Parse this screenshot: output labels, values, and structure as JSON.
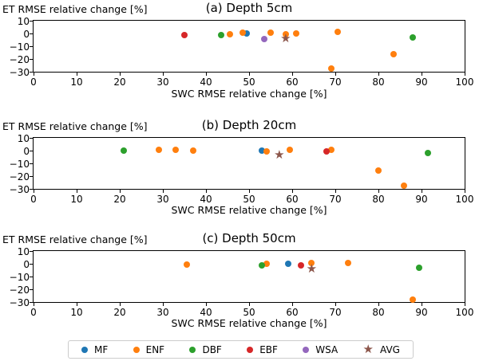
{
  "figure": {
    "ylabel": "ET RMSE relative change [%]",
    "xlabel": "SWC RMSE relative change [%]"
  },
  "colors": {
    "MF": "#1f77b4",
    "ENF": "#ff7f0e",
    "DBF": "#2ca02c",
    "EBF": "#d62728",
    "WSA": "#9467bd",
    "AVG": "#8c564b"
  },
  "legend": {
    "items": [
      {
        "label": "MF",
        "color": "#1f77b4",
        "marker": "circle"
      },
      {
        "label": "ENF",
        "color": "#ff7f0e",
        "marker": "circle"
      },
      {
        "label": "DBF",
        "color": "#2ca02c",
        "marker": "circle"
      },
      {
        "label": "EBF",
        "color": "#d62728",
        "marker": "circle"
      },
      {
        "label": "WSA",
        "color": "#9467bd",
        "marker": "circle"
      },
      {
        "label": "AVG",
        "color": "#8c564b",
        "marker": "star"
      }
    ]
  },
  "chart_data": [
    {
      "type": "scatter",
      "title": "(a) Depth 5cm",
      "xlabel": "SWC RMSE relative change [%]",
      "ylabel": "ET RMSE relative change [%]",
      "xlim": [
        0,
        100
      ],
      "ylim": [
        -30,
        10
      ],
      "xticks": [
        0,
        10,
        20,
        30,
        40,
        50,
        60,
        70,
        80,
        90,
        100
      ],
      "yticks": [
        10,
        0,
        -10,
        -20,
        -30
      ],
      "series": [
        {
          "name": "MF",
          "color": "#1f77b4",
          "marker": "circle",
          "points": [
            [
              49.5,
              0
            ]
          ]
        },
        {
          "name": "ENF",
          "color": "#ff7f0e",
          "marker": "circle",
          "points": [
            [
              45.5,
              -0.5
            ],
            [
              48.5,
              0.5
            ],
            [
              55,
              0.5
            ],
            [
              58.5,
              -0.5
            ],
            [
              61,
              0
            ],
            [
              70.5,
              1
            ],
            [
              69,
              -27.5
            ],
            [
              83.5,
              -16
            ]
          ]
        },
        {
          "name": "DBF",
          "color": "#2ca02c",
          "marker": "circle",
          "points": [
            [
              43.5,
              -1
            ],
            [
              88,
              -3
            ]
          ]
        },
        {
          "name": "EBF",
          "color": "#d62728",
          "marker": "circle",
          "points": [
            [
              35,
              -1.5
            ]
          ]
        },
        {
          "name": "WSA",
          "color": "#9467bd",
          "marker": "circle",
          "points": [
            [
              53.5,
              -4.5
            ]
          ]
        },
        {
          "name": "AVG",
          "color": "#8c564b",
          "marker": "star",
          "points": [
            [
              58.5,
              -4.5
            ]
          ]
        }
      ]
    },
    {
      "type": "scatter",
      "title": "(b) Depth 20cm",
      "xlabel": "SWC RMSE relative change [%]",
      "ylabel": "ET RMSE relative change [%]",
      "xlim": [
        0,
        100
      ],
      "ylim": [
        -30,
        10
      ],
      "xticks": [
        0,
        10,
        20,
        30,
        40,
        50,
        60,
        70,
        80,
        90,
        100
      ],
      "yticks": [
        10,
        0,
        -10,
        -20,
        -30
      ],
      "series": [
        {
          "name": "MF",
          "color": "#1f77b4",
          "marker": "circle",
          "points": [
            [
              53,
              0
            ]
          ]
        },
        {
          "name": "ENF",
          "color": "#ff7f0e",
          "marker": "circle",
          "points": [
            [
              29,
              0.5
            ],
            [
              33,
              0.5
            ],
            [
              37,
              0
            ],
            [
              54,
              -0.5
            ],
            [
              59.5,
              0.5
            ],
            [
              69,
              0.5
            ],
            [
              80,
              -15.5
            ],
            [
              86,
              -27.5
            ]
          ]
        },
        {
          "name": "DBF",
          "color": "#2ca02c",
          "marker": "circle",
          "points": [
            [
              21,
              0
            ],
            [
              91.5,
              -2
            ]
          ]
        },
        {
          "name": "EBF",
          "color": "#d62728",
          "marker": "circle",
          "points": [
            [
              68,
              -0.5
            ]
          ]
        },
        {
          "name": "AVG",
          "color": "#8c564b",
          "marker": "star",
          "points": [
            [
              57,
              -4
            ]
          ]
        }
      ]
    },
    {
      "type": "scatter",
      "title": "(c) Depth 50cm",
      "xlabel": "SWC RMSE relative change [%]",
      "ylabel": "ET RMSE relative change [%]",
      "xlim": [
        0,
        100
      ],
      "ylim": [
        -30,
        10
      ],
      "xticks": [
        0,
        10,
        20,
        30,
        40,
        50,
        60,
        70,
        80,
        90,
        100
      ],
      "yticks": [
        10,
        0,
        -10,
        -20,
        -30
      ],
      "series": [
        {
          "name": "MF",
          "color": "#1f77b4",
          "marker": "circle",
          "points": [
            [
              59,
              0
            ]
          ]
        },
        {
          "name": "ENF",
          "color": "#ff7f0e",
          "marker": "circle",
          "points": [
            [
              35.5,
              -0.5
            ],
            [
              54,
              0
            ],
            [
              64.5,
              0.5
            ],
            [
              73,
              0.5
            ],
            [
              88,
              -28
            ]
          ]
        },
        {
          "name": "DBF",
          "color": "#2ca02c",
          "marker": "circle",
          "points": [
            [
              53,
              -1.5
            ],
            [
              89.5,
              -3
            ]
          ]
        },
        {
          "name": "EBF",
          "color": "#d62728",
          "marker": "circle",
          "points": [
            [
              62,
              -1.5
            ]
          ]
        },
        {
          "name": "AVG",
          "color": "#8c564b",
          "marker": "star",
          "points": [
            [
              64.5,
              -4.5
            ]
          ]
        }
      ]
    }
  ]
}
